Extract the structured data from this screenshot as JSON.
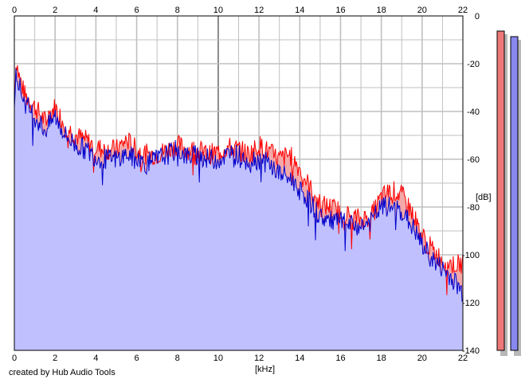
{
  "footer": "created by Hub Audio Tools",
  "chart_data": {
    "type": "area",
    "xlabel": "[kHz]",
    "ylabel": "[dB]",
    "xlim": [
      0,
      22
    ],
    "ylim": [
      -140,
      0
    ],
    "x_ticks": [
      0,
      2,
      4,
      6,
      8,
      10,
      12,
      14,
      16,
      18,
      20,
      22
    ],
    "y_ticks": [
      0,
      -20,
      -40,
      -60,
      -80,
      -100,
      -120,
      -140
    ],
    "grid": true,
    "colors": {
      "series_1": "#ff0000",
      "series_1_fill": "#f4a8a8",
      "series_2": "#0000cc",
      "series_2_fill": "#c0c0ff",
      "meter_1": "#ee7777",
      "meter_2": "#8888ee",
      "grid_minor": "#c0c0c0",
      "grid_major": "#8a8a8a",
      "axis": "#000000"
    },
    "x": [
      0,
      0.1,
      0.2,
      0.5,
      1,
      1.5,
      2,
      2.5,
      3,
      3.5,
      4,
      4.5,
      5,
      5.5,
      6,
      6.5,
      7,
      7.5,
      8,
      8.5,
      9,
      9.5,
      10,
      10.5,
      11,
      11.5,
      12,
      12.5,
      13,
      13.5,
      14,
      14.5,
      15,
      15.5,
      16,
      16.5,
      17,
      17.5,
      18,
      18.5,
      19,
      19.5,
      20,
      20.5,
      21,
      21.5,
      22
    ],
    "series": [
      {
        "values": [
          -32,
          -18,
          -24,
          -33,
          -38,
          -44,
          -38,
          -46,
          -50,
          -52,
          -55,
          -56,
          -56,
          -52,
          -56,
          -58,
          -58,
          -56,
          -54,
          -56,
          -56,
          -58,
          -57,
          -55,
          -56,
          -58,
          -54,
          -57,
          -60,
          -58,
          -64,
          -72,
          -79,
          -80,
          -82,
          -84,
          -85,
          -84,
          -76,
          -73,
          -75,
          -82,
          -92,
          -98,
          -102,
          -104,
          -104
        ]
      },
      {
        "values": [
          -34,
          -22,
          -28,
          -36,
          -42,
          -48,
          -42,
          -50,
          -54,
          -56,
          -59,
          -60,
          -60,
          -58,
          -60,
          -62,
          -60,
          -58,
          -56,
          -59,
          -58,
          -60,
          -60,
          -58,
          -58,
          -60,
          -60,
          -62,
          -66,
          -68,
          -72,
          -78,
          -84,
          -86,
          -86,
          -88,
          -88,
          -86,
          -80,
          -80,
          -82,
          -88,
          -96,
          -102,
          -106,
          -110,
          -116
        ]
      }
    ]
  }
}
